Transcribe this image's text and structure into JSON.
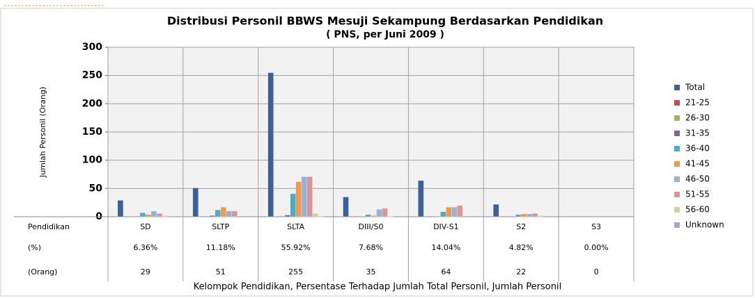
{
  "chart_data": {
    "type": "bar",
    "title": "Distribusi Personil BBWS Mesuji Sekampung Berdasarkan Pendidikan",
    "subtitle": "( PNS, per Juni 2009 )",
    "y_label": "Jumlah Personil (Orang)",
    "x_label": "Kelompok Pendidikan, Persentase Terhadap Jumlah Total Personil, Jumlah Personil",
    "categories": [
      "SD",
      "SLTP",
      "SLTA",
      "DIII/S0",
      "DIV-S1",
      "S2",
      "S3"
    ],
    "ylim": [
      0,
      300
    ],
    "yticks": [
      0,
      50,
      100,
      150,
      200,
      250,
      300
    ],
    "grid": true,
    "legend": "right",
    "series": [
      {
        "name": "Total",
        "color": "#3c6099",
        "values": [
          29,
          51,
          255,
          35,
          64,
          22,
          0
        ]
      },
      {
        "name": "21-25",
        "color": "#c0504d",
        "values": [
          0,
          0,
          0,
          0,
          0,
          0,
          0
        ]
      },
      {
        "name": "26-30",
        "color": "#9bbb59",
        "values": [
          0,
          0,
          0,
          0,
          0,
          0,
          0
        ]
      },
      {
        "name": "31-35",
        "color": "#8064a2",
        "values": [
          0,
          2,
          3,
          0,
          1,
          0,
          0
        ]
      },
      {
        "name": "36-40",
        "color": "#4bacc6",
        "values": [
          7,
          12,
          41,
          4,
          9,
          4,
          0
        ]
      },
      {
        "name": "41-45",
        "color": "#f79646",
        "values": [
          4,
          17,
          62,
          2,
          17,
          5,
          0
        ]
      },
      {
        "name": "46-50",
        "color": "#95b3d7",
        "values": [
          10,
          10,
          71,
          13,
          17,
          5,
          0
        ]
      },
      {
        "name": "51-55",
        "color": "#da9694",
        "values": [
          6,
          10,
          71,
          15,
          20,
          6,
          0
        ]
      },
      {
        "name": "56-60",
        "color": "#c3d69b",
        "values": [
          2,
          0,
          6,
          1,
          0,
          2,
          0
        ]
      },
      {
        "name": "Unknown",
        "color": "#b3a2c7",
        "values": [
          0,
          0,
          1,
          0,
          0,
          0,
          0
        ]
      }
    ],
    "data_table": {
      "row_labels": [
        "Pendidikan",
        "(%)",
        "(Orang)"
      ],
      "percent": [
        "6.36%",
        "11.18%",
        "55.92%",
        "7.68%",
        "14.04%",
        "4.82%",
        "0.00%"
      ]
    }
  }
}
